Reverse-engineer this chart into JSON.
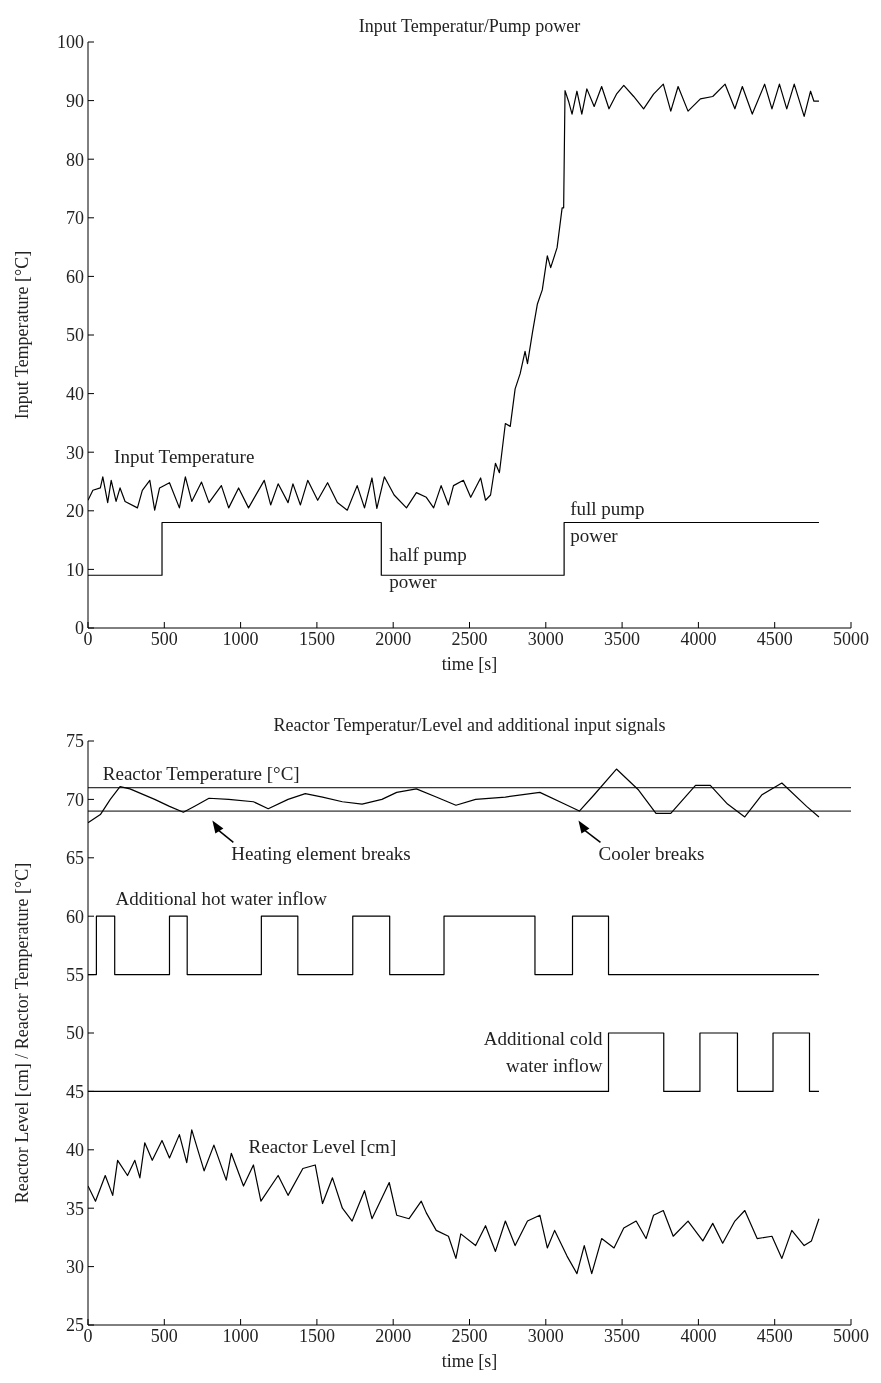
{
  "chart_data": [
    {
      "type": "line",
      "title": "Input Temperatur/Pump power",
      "xlabel": "time [s]",
      "ylabel": "Input Temperature [°C]",
      "xlim": [
        0,
        5000
      ],
      "xticks": [
        0,
        500,
        1000,
        1500,
        2000,
        2500,
        3000,
        3500,
        4000,
        4500,
        5000
      ],
      "ylim": [
        0,
        100
      ],
      "yticks": [
        0,
        10,
        20,
        30,
        40,
        50,
        60,
        70,
        80,
        90,
        100
      ],
      "marker": "none",
      "line_style": "solid",
      "series": [
        {
          "color": "#000000",
          "x": [
            0,
            32,
            81,
            97,
            129,
            152,
            184,
            210,
            243,
            324,
            356,
            405,
            437,
            469,
            534,
            599,
            638,
            680,
            744,
            793,
            874,
            922,
            987,
            1052,
            1155,
            1197,
            1246,
            1311,
            1343,
            1392,
            1440,
            1505,
            1570,
            1634,
            1699,
            1764,
            1812,
            1861,
            1893,
            1942,
            2006,
            2087,
            2152,
            2217,
            2265,
            2314,
            2362,
            2395,
            2460,
            2508,
            2573,
            2605,
            2638,
            2670,
            2696,
            2735,
            2767,
            2799,
            2832,
            2864,
            2880,
            2913,
            2945,
            2977,
            3010,
            3032,
            3074,
            3107,
            3117,
            3126,
            3149,
            3172,
            3204,
            3236,
            3269,
            3317,
            3366,
            3414,
            3463,
            3511,
            3576,
            3641,
            3706,
            3770,
            3819,
            3867,
            3932,
            4013,
            4094,
            4175,
            4239,
            4288,
            4353,
            4434,
            4482,
            4531,
            4579,
            4628,
            4693,
            4735,
            4757,
            4790
          ],
          "values": [
            21.8,
            23.5,
            23.9,
            25.8,
            21.4,
            25.2,
            21.6,
            23.9,
            21.6,
            20.5,
            23.5,
            25.2,
            20.1,
            23.9,
            24.8,
            20.5,
            25.8,
            21.6,
            24.9,
            21.4,
            24.3,
            20.5,
            23.9,
            20.5,
            25.2,
            21,
            24.6,
            21.4,
            24.6,
            21,
            25.2,
            21.8,
            24.8,
            21.4,
            20.1,
            24.3,
            20.5,
            25.6,
            20.4,
            25.8,
            22.7,
            20.5,
            23.1,
            22.3,
            20.5,
            24.3,
            21,
            24.3,
            25.2,
            22.3,
            25.6,
            21.8,
            22.7,
            28.1,
            26.5,
            34.9,
            34.4,
            40.8,
            43.4,
            47.2,
            45.1,
            50.5,
            55.3,
            57.7,
            63.5,
            61.5,
            64.9,
            71.7,
            71.7,
            91.7,
            89.9,
            87.7,
            91.6,
            87.7,
            92,
            89,
            92.4,
            88.6,
            91.1,
            92.6,
            90.7,
            88.6,
            91.1,
            92.8,
            88.2,
            92.4,
            88.2,
            90.3,
            90.7,
            92.8,
            88.6,
            92.4,
            87.7,
            92.8,
            88.6,
            92.8,
            88.6,
            92.8,
            87.3,
            91.6,
            89.9,
            89.9
          ]
        },
        {
          "type": "step",
          "color": "#000000",
          "x": [
            0,
            485,
            1922,
            3120,
            4790
          ],
          "values": [
            9,
            18,
            9,
            18,
            18
          ]
        }
      ],
      "annotations": [
        "Input Temperature",
        "half pump\npower",
        "full pump\npower"
      ]
    },
    {
      "type": "line",
      "title": "Reactor Temperatur/Level and additional input signals",
      "xlabel": "time [s]",
      "ylabel": "Reactor Level [cm] / Reactor Temperature [°C]",
      "xlim": [
        0,
        5000
      ],
      "xticks": [
        0,
        500,
        1000,
        1500,
        2000,
        2500,
        3000,
        3500,
        4000,
        4500,
        5000
      ],
      "ylim": [
        25,
        75
      ],
      "yticks": [
        25,
        30,
        35,
        40,
        45,
        50,
        55,
        60,
        65,
        70,
        75
      ],
      "marker": "none",
      "line_style": "solid",
      "series": [
        {
          "color": "#000000",
          "x": [
            0,
            81,
            146,
            210,
            275,
            437,
            534,
            625,
            696,
            793,
            922,
            1084,
            1181,
            1311,
            1424,
            1537,
            1667,
            1796,
            1926,
            2023,
            2152,
            2282,
            2411,
            2540,
            2735,
            2961,
            3123,
            3220,
            3317,
            3463,
            3608,
            3722,
            3819,
            3981,
            4078,
            4191,
            4304,
            4417,
            4547,
            4709,
            4790
          ],
          "values": [
            68,
            68.7,
            70,
            71.1,
            70.9,
            70,
            69.4,
            68.9,
            69.4,
            70.1,
            70,
            69.8,
            69.2,
            70,
            70.5,
            70.2,
            69.8,
            69.6,
            70,
            70.6,
            70.9,
            70.2,
            69.5,
            70,
            70.2,
            70.6,
            69.6,
            69,
            70.4,
            72.6,
            70.8,
            68.8,
            68.8,
            71.2,
            71.2,
            69.6,
            68.5,
            70.4,
            71.4,
            69.4,
            68.5
          ]
        },
        {
          "type": "step",
          "color": "#000000",
          "x": [
            0,
            55,
            175,
            534,
            650,
            1136,
            1375,
            1735,
            1977,
            2333,
            2929,
            3175,
            3411,
            4790
          ],
          "values": [
            55,
            60,
            55,
            60,
            55,
            60,
            55,
            60,
            55,
            60,
            55,
            60,
            55,
            55
          ]
        },
        {
          "type": "step",
          "color": "#000000",
          "x": [
            0,
            3411,
            3773,
            4010,
            4256,
            4489,
            4728,
            4790
          ],
          "values": [
            45,
            50,
            45,
            50,
            45,
            50,
            45,
            45
          ]
        },
        {
          "color": "#000000",
          "x": [
            0,
            49,
            113,
            162,
            194,
            259,
            307,
            340,
            372,
            421,
            485,
            534,
            599,
            647,
            680,
            761,
            825,
            906,
            939,
            1019,
            1084,
            1133,
            1246,
            1311,
            1408,
            1489,
            1537,
            1602,
            1667,
            1731,
            1812,
            1861,
            1974,
            2023,
            2104,
            2184,
            2217,
            2282,
            2362,
            2411,
            2443,
            2540,
            2605,
            2670,
            2735,
            2799,
            2880,
            2961,
            3010,
            3058,
            3139,
            3204,
            3252,
            3301,
            3366,
            3447,
            3511,
            3592,
            3657,
            3706,
            3770,
            3835,
            3932,
            4029,
            4094,
            4159,
            4239,
            4304,
            4385,
            4482,
            4547,
            4612,
            4693,
            4741,
            4790
          ],
          "values": [
            36.9,
            35.6,
            37.8,
            36.1,
            39.1,
            37.8,
            39.1,
            37.6,
            40.6,
            39.1,
            40.8,
            39.3,
            41.3,
            38.9,
            41.7,
            38.2,
            40.4,
            37.4,
            39.7,
            36.9,
            38.7,
            35.6,
            37.8,
            36.1,
            38.4,
            38.7,
            35.4,
            37.6,
            35,
            33.9,
            36.5,
            34.1,
            37.2,
            34.4,
            34.1,
            35.6,
            34.6,
            33.1,
            32.6,
            30.7,
            32.8,
            31.8,
            33.5,
            31.3,
            33.9,
            31.8,
            33.9,
            34.4,
            31.6,
            33.1,
            30.9,
            29.4,
            31.8,
            29.4,
            32.4,
            31.6,
            33.3,
            33.9,
            32.4,
            34.4,
            34.8,
            32.6,
            33.9,
            32.2,
            33.7,
            32,
            33.9,
            34.8,
            32.4,
            32.6,
            30.7,
            33.1,
            31.8,
            32.2,
            34.1
          ]
        }
      ],
      "ref_lines": [
        {
          "axis": "y",
          "value": 71
        },
        {
          "axis": "y",
          "value": 69
        }
      ],
      "annotations": [
        "Reactor Temperature [°C]",
        "Heating element breaks",
        "Cooler breaks",
        "Additional hot water inflow",
        "Additional cold\nwater inflow",
        "Reactor Level [cm]"
      ]
    }
  ]
}
